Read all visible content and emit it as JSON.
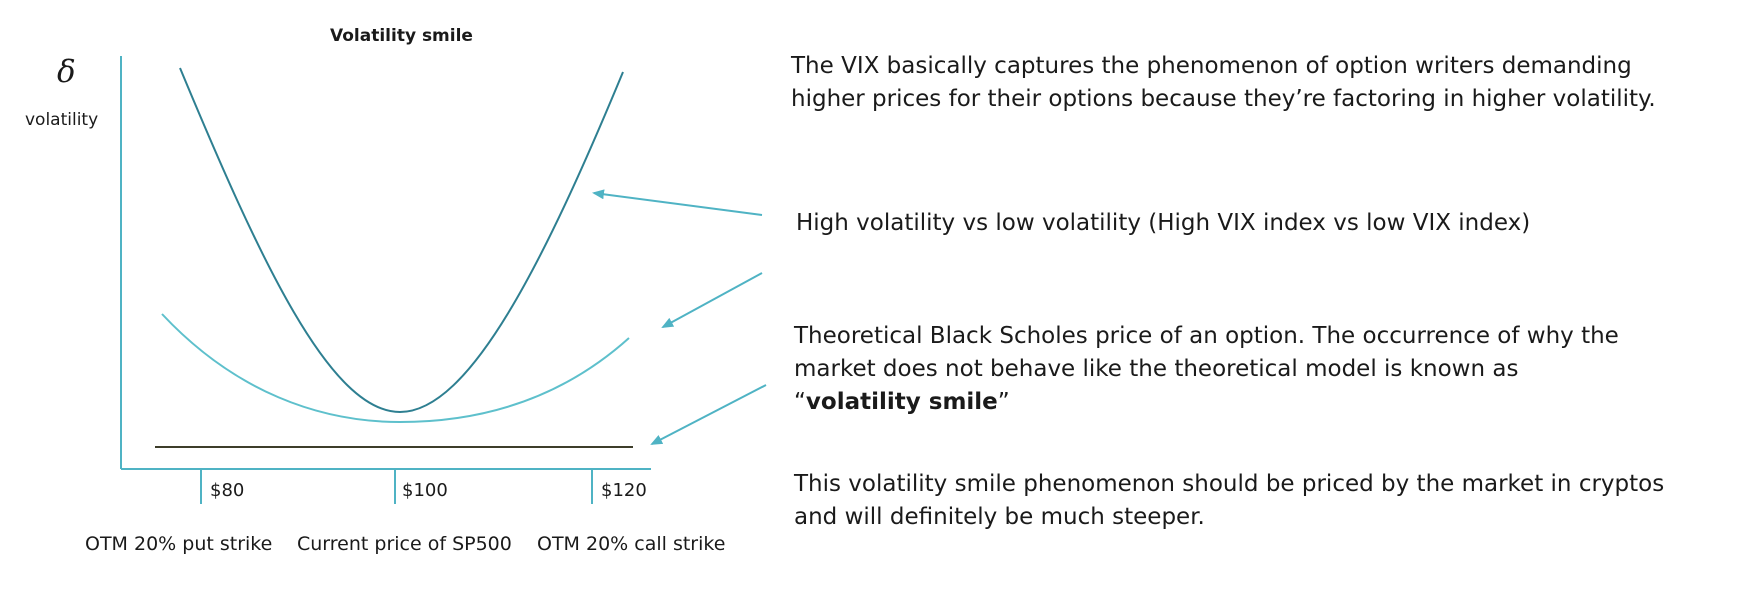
{
  "chart": {
    "title": "Volatility smile",
    "y_symbol": "δ",
    "y_label": "volatility",
    "ticks": [
      "$80",
      "$100",
      "$120"
    ],
    "captions": [
      "OTM 20% put strike",
      "Current price of SP500",
      "OTM 20% call strike"
    ]
  },
  "text": {
    "p1": "The VIX basically captures the phenomenon of option writers demanding higher prices for their options because they’re factoring in higher volatility.",
    "p2": "High volatility vs low volatility (High VIX index vs low VIX index)",
    "p3_before": "Theoretical Black Scholes price of an option. The occurrence of why the market does not behave like the theoretical model is known as “",
    "p3_bold": "volatility smile",
    "p3_after": "”",
    "p4": "This volatility smile phenomenon should be priced by the market in cryptos and will definitely be much steeper."
  },
  "colors": {
    "axis": "#4fb3c4",
    "steep_curve": "#2e7f91",
    "shallow_curve": "#5ec0cc",
    "flat_line": "#3d3d2a",
    "arrow": "#4fb3c4"
  }
}
